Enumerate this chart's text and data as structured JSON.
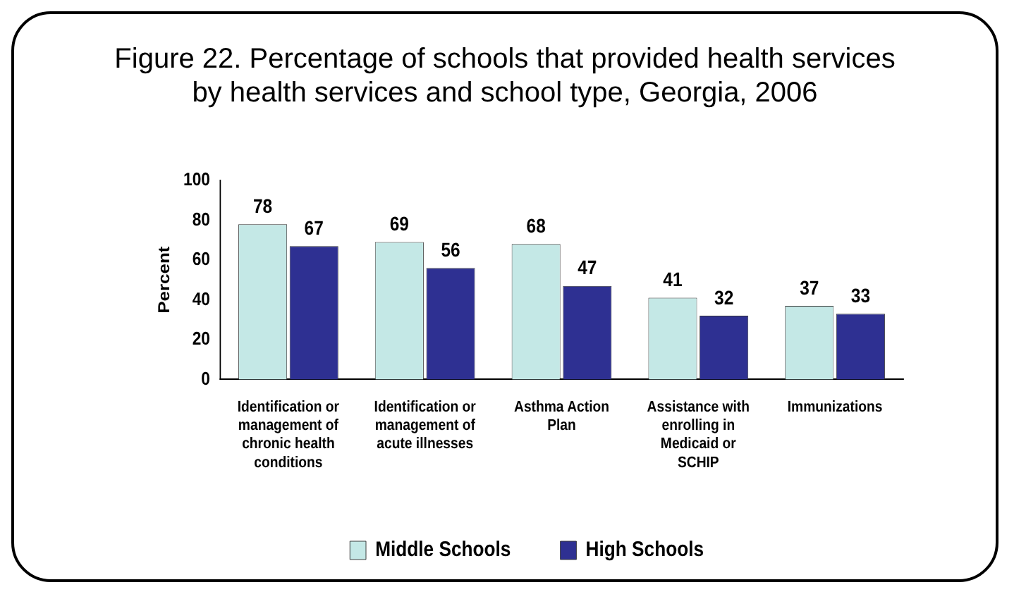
{
  "chart_data": {
    "type": "bar",
    "title": "Figure 22. Percentage of schools that provided health services by health services and school type, Georgia, 2006",
    "ylabel": "Percent",
    "categories": [
      "Identification or management of chronic health conditions",
      "Identification or management of acute illnesses",
      "Asthma Action Plan",
      "Assistance with enrolling in Medicaid or SCHIP",
      "Immunizations"
    ],
    "series": [
      {
        "name": "Middle Schools",
        "color": "#c4e8e6",
        "values": [
          78,
          69,
          68,
          41,
          37
        ]
      },
      {
        "name": "High Schools",
        "color": "#2e3092",
        "values": [
          67,
          56,
          47,
          32,
          33
        ]
      }
    ],
    "ylim": [
      0,
      100
    ],
    "yticks": [
      0,
      20,
      40,
      60,
      80,
      100
    ],
    "grid": false,
    "legend": "bottom",
    "data_labels": true
  }
}
